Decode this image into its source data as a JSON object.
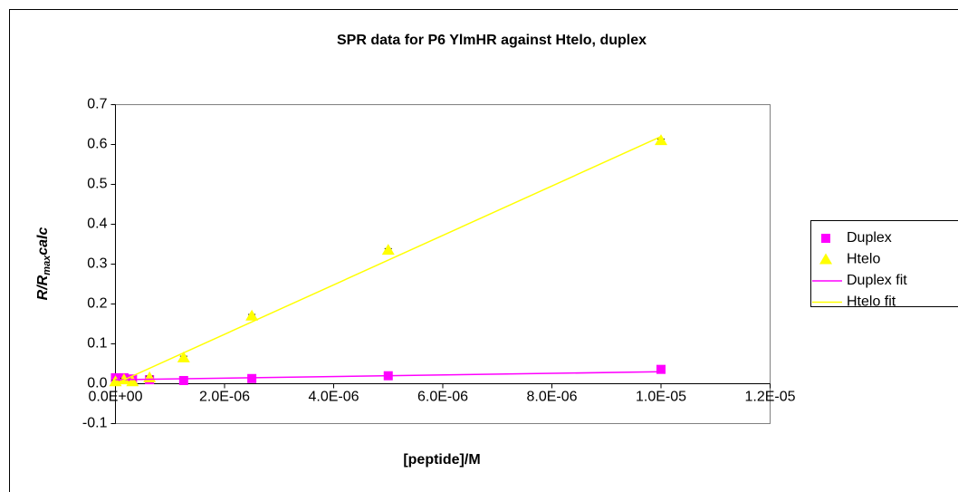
{
  "chart_data": {
    "type": "scatter",
    "title": "SPR data for P6 YlmHR against Htelo, duplex",
    "xlabel": "[peptide]/M",
    "ylabel": {
      "main": "R/R",
      "sub": "max",
      "tail": "calc"
    },
    "xlim": [
      0,
      1.2e-05
    ],
    "xticks": [
      {
        "value": 0,
        "label": "0.0E+00"
      },
      {
        "value": 2e-06,
        "label": "2.0E-06"
      },
      {
        "value": 4e-06,
        "label": "4.0E-06"
      },
      {
        "value": 6e-06,
        "label": "6.0E-06"
      },
      {
        "value": 8e-06,
        "label": "8.0E-06"
      },
      {
        "value": 1e-05,
        "label": "1.0E-05"
      },
      {
        "value": 1.2e-05,
        "label": "1.2E-05"
      }
    ],
    "ylim": [
      -0.1,
      0.7
    ],
    "yticks": [
      -0.1,
      {
        "value": 0,
        "label": "0.0"
      },
      0.1,
      0.2,
      0.3,
      0.4,
      0.5,
      0.6,
      0.7
    ],
    "grid": false,
    "legend": "right",
    "series": [
      {
        "name": "Duplex",
        "mode": "marker",
        "marker": "square",
        "color": "#ff00ff",
        "x": [
          0,
          1.5625e-07,
          3.125e-07,
          6.25e-07,
          1.25e-06,
          2.5e-06,
          5e-06,
          1e-05
        ],
        "values": [
          0.015,
          0.015,
          0.012,
          0.01,
          0.008,
          0.013,
          0.02,
          0.036
        ]
      },
      {
        "name": "Htelo",
        "mode": "marker",
        "marker": "triangle",
        "color": "#ffff00",
        "x": [
          0,
          1.5625e-07,
          3.125e-07,
          6.25e-07,
          1.25e-06,
          2.5e-06,
          5e-06,
          1e-05
        ],
        "values": [
          0.005,
          0.01,
          0.005,
          0.015,
          0.065,
          0.17,
          0.335,
          0.61
        ],
        "errors": [
          0.004,
          0.004,
          0.004,
          0.004,
          0.004,
          0.004,
          0.004,
          0.004
        ]
      },
      {
        "name": "Duplex fit",
        "mode": "line",
        "color": "#ff00ff",
        "x": [
          0,
          1e-05
        ],
        "values": [
          0.01,
          0.03
        ]
      },
      {
        "name": "Htelo fit",
        "mode": "line",
        "color": "#ffff00",
        "x": [
          0,
          1e-05
        ],
        "values": [
          0,
          0.62
        ]
      }
    ]
  }
}
